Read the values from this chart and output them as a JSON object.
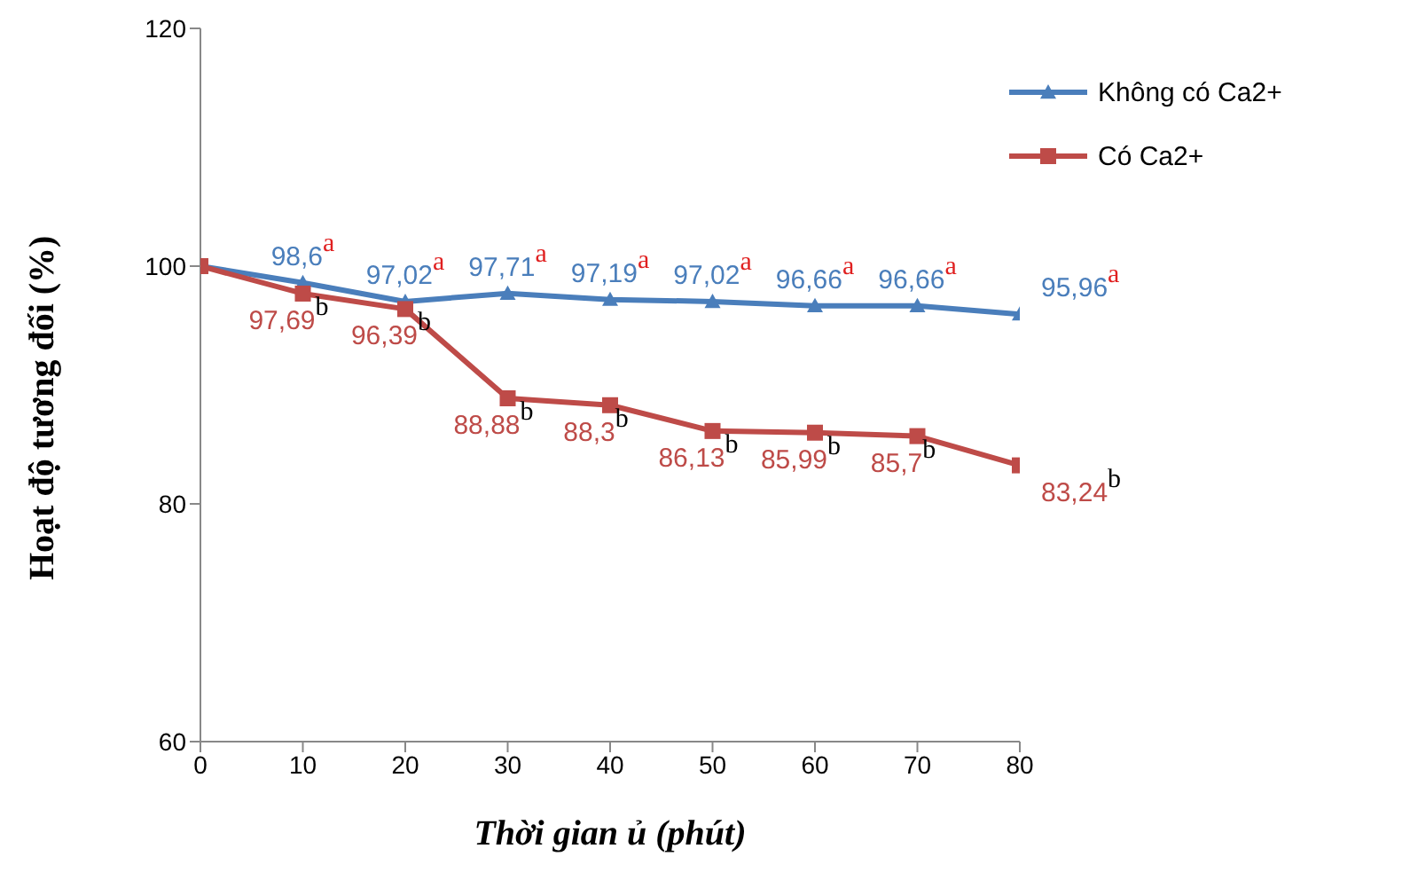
{
  "chart_data": {
    "type": "line",
    "xlabel": "Thời gian ủ (phút)",
    "ylabel": "Hoạt độ tương đối (%)",
    "x": [
      0,
      10,
      20,
      30,
      40,
      50,
      60,
      70,
      80
    ],
    "xlim": [
      0,
      80
    ],
    "xticks": [
      0,
      10,
      20,
      30,
      40,
      50,
      60,
      70,
      80
    ],
    "ylim": [
      60,
      120
    ],
    "yticks": [
      60,
      80,
      100,
      120
    ],
    "grid": false,
    "legend": "top right",
    "series": [
      {
        "name": "Không có Ca2+",
        "color": "#4a7ebb",
        "marker": "triangle",
        "values": [
          100,
          98.6,
          97.02,
          97.71,
          97.19,
          97.02,
          96.66,
          96.66,
          95.96
        ],
        "value_labels": [
          null,
          "98,6$^{a}$",
          "97,02$^{a}$",
          "97,71$^{a}$",
          "97,19$^{a}$",
          "97,02$^{a}$",
          "96,66$^{a}$",
          "96,66$^{a}$",
          "95,96$^{a}$"
        ]
      },
      {
        "name": "Có Ca2+",
        "color": "#be4b48",
        "marker": "square",
        "values": [
          100,
          97.69,
          96.39,
          88.88,
          88.3,
          86.13,
          85.99,
          85.7,
          83.24
        ],
        "value_labels": [
          null,
          "97,69$^{b}$",
          "96,39$^{b}$",
          "88,88$^{b}$",
          "88,3$^{b}$",
          "86,13$^{b}$",
          "85,99$^{b}$",
          "85,7$^{b}$",
          "83,24$^{b}$"
        ]
      }
    ]
  }
}
